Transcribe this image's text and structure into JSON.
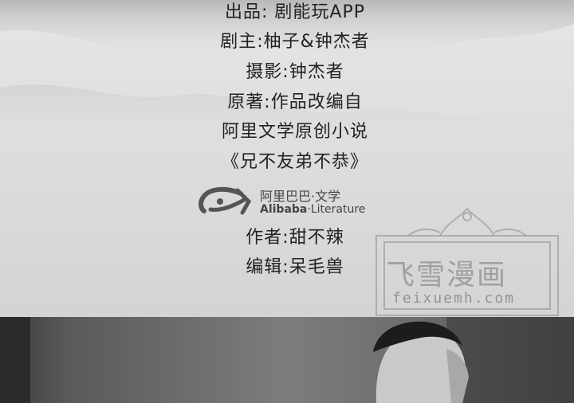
{
  "credits": [
    "出品: 剧能玩APP",
    "剧主:柚子&钟杰者",
    "摄影:钟杰者",
    "原著:作品改编自",
    "阿里文学原创小说",
    "《兄不友弟不恭》",
    "作者:甜不辣",
    "编辑:呆毛兽"
  ],
  "logo": {
    "cn": "阿里巴巴·文学",
    "en_bold": "Alibaba",
    "en_rest": "·Literature"
  },
  "watermark": {
    "cn": "飞雪漫画",
    "url": "feixuemh.com"
  }
}
